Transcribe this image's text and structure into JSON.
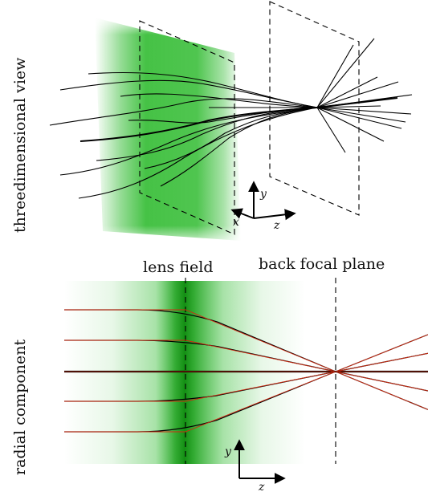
{
  "labels": {
    "top_panel": "threedimensional view",
    "bottom_panel": "radial component",
    "lens_field": "lens field",
    "back_focal_plane": "back focal plane"
  },
  "axes": {
    "top": {
      "vertical": "y",
      "horizontal": "z",
      "depth": "x"
    },
    "bottom": {
      "vertical": "y",
      "horizontal": "z"
    }
  },
  "colors": {
    "lens_green": "#3cbf3c",
    "lens_green_dark": "#1a9a1a",
    "ray_line": "#000000",
    "paraxial_ray": "#d02a10",
    "plane_dash": "#000000"
  },
  "radial_rays": {
    "entry_heights": [
      77,
      39,
      0,
      -37,
      -75
    ]
  }
}
